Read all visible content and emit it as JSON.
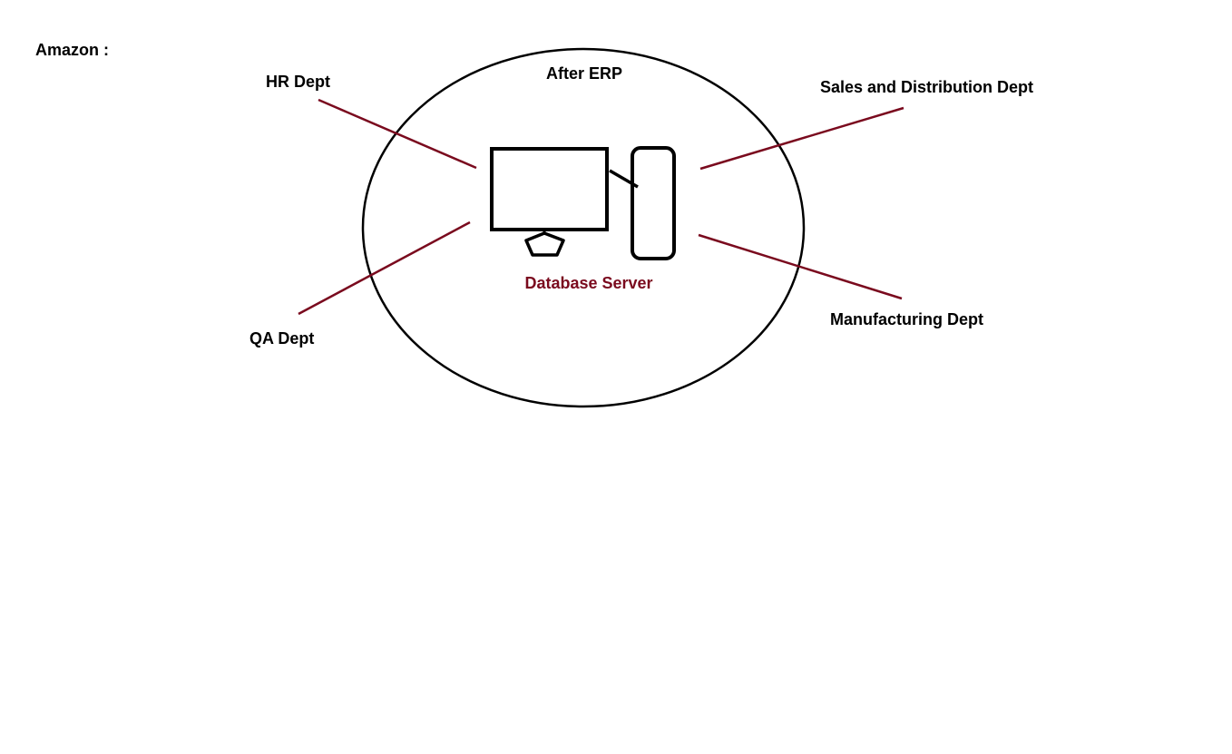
{
  "diagram": {
    "company_label": "Amazon :",
    "boundary_label": "After ERP",
    "server_label": "Database Server",
    "departments": {
      "hr": "HR Dept",
      "qa": "QA Dept",
      "sales": "Sales and Distribution Dept",
      "manufacturing": "Manufacturing Dept"
    }
  },
  "colors": {
    "outline": "#000000",
    "connector": "#7a0a1e",
    "server_label": "#7a0a1e"
  },
  "icons": [
    "computer-monitor-icon",
    "server-tower-icon"
  ]
}
